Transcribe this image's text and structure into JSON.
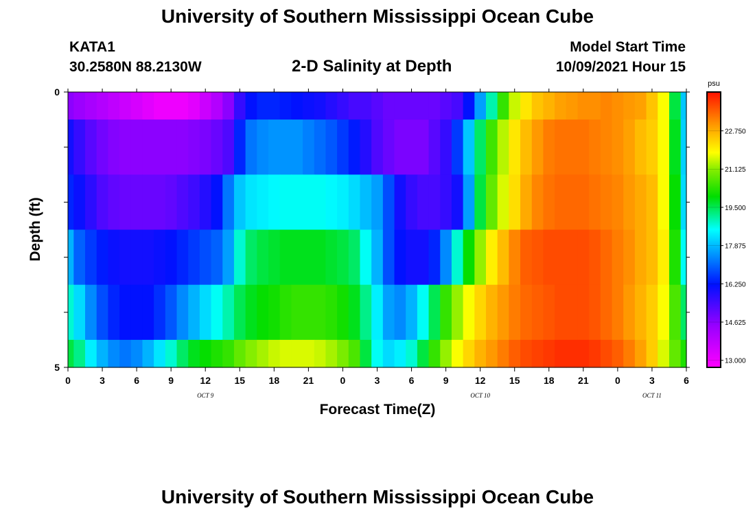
{
  "header": {
    "title": "University of Southern Mississippi Ocean Cube",
    "station": "KATA1",
    "coords": "30.2580N  88.2130W",
    "subtitle": "2-D Salinity at Depth",
    "model_start_label": "Model Start Time",
    "model_start_value": "10/09/2021 Hour 15"
  },
  "footer": {
    "title": "University of Southern Mississippi Ocean Cube"
  },
  "chart_data": {
    "type": "heatmap",
    "xlabel": "Forecast Time(Z)",
    "ylabel": "Depth (ft)",
    "x_tick_labels": [
      "0",
      "3",
      "6",
      "9",
      "12",
      "15",
      "18",
      "21",
      "0",
      "3",
      "6",
      "9",
      "12",
      "15",
      "18",
      "21",
      "0",
      "3",
      "6"
    ],
    "x_range_hours": [
      0,
      54
    ],
    "date_labels": [
      {
        "label": "OCT 9",
        "hour": 12
      },
      {
        "label": "OCT 10",
        "hour": 36
      },
      {
        "label": "OCT 11",
        "hour": 51
      }
    ],
    "y_tick_labels": [
      "0",
      "5"
    ],
    "ylim": [
      0,
      5
    ],
    "y_inverted": true,
    "colorbar": {
      "unit": "psu",
      "min": 12.7,
      "max": 24.4,
      "tick_labels": [
        "22.750",
        "21.125",
        "19.500",
        "17.875",
        "16.250",
        "14.625",
        "13.000"
      ],
      "tick_values": [
        22.75,
        21.125,
        19.5,
        17.875,
        16.25,
        14.625,
        13.0
      ]
    },
    "rows_depth_ft": [
      0.25,
      1.0,
      2.0,
      3.0,
      4.0,
      4.75
    ],
    "row_boundaries_ft": [
      0,
      0.5,
      1.5,
      2.5,
      3.5,
      4.5,
      5.0
    ],
    "x_hours": [
      0,
      1,
      2,
      3,
      4,
      5,
      6,
      7,
      8,
      9,
      10,
      11,
      12,
      13,
      14,
      15,
      16,
      17,
      18,
      19,
      20,
      21,
      22,
      23,
      24,
      25,
      26,
      27,
      28,
      29,
      30,
      31,
      32,
      33,
      34,
      35,
      36,
      37,
      38,
      39,
      40,
      41,
      42,
      43,
      44,
      45,
      46,
      47,
      48,
      49,
      50,
      51,
      52,
      53,
      54
    ],
    "salinity": [
      [
        14.6,
        14.4,
        14.2,
        14.0,
        13.8,
        13.6,
        13.4,
        13.2,
        13.0,
        13.0,
        13.0,
        13.2,
        13.6,
        14.0,
        14.6,
        15.6,
        16.2,
        16.4,
        16.4,
        16.3,
        16.2,
        16.1,
        16.0,
        15.8,
        15.6,
        15.4,
        15.4,
        15.2,
        15.0,
        15.0,
        15.0,
        15.0,
        15.0,
        15.2,
        15.4,
        16.2,
        17.6,
        19.0,
        20.4,
        21.5,
        22.1,
        22.5,
        22.7,
        22.9,
        23.0,
        23.1,
        23.1,
        23.2,
        23.1,
        23.0,
        22.9,
        22.5,
        21.8,
        19.6,
        18.0
      ],
      [
        16.0,
        15.6,
        15.2,
        14.9,
        14.7,
        14.6,
        14.6,
        14.6,
        14.6,
        14.6,
        14.6,
        14.7,
        14.8,
        15.0,
        15.3,
        16.4,
        17.2,
        17.4,
        17.5,
        17.5,
        17.5,
        17.3,
        17.1,
        16.9,
        16.6,
        16.3,
        15.8,
        15.3,
        15.0,
        14.8,
        14.8,
        14.8,
        15.2,
        15.6,
        16.6,
        18.0,
        19.4,
        20.5,
        21.4,
        22.1,
        22.6,
        23.0,
        23.3,
        23.4,
        23.4,
        23.4,
        23.3,
        23.2,
        23.1,
        22.9,
        22.6,
        22.4,
        21.8,
        19.8,
        18.1
      ],
      [
        16.4,
        16.1,
        15.7,
        15.3,
        15.1,
        15.0,
        15.0,
        15.0,
        15.0,
        15.1,
        15.3,
        15.5,
        15.8,
        16.2,
        17.2,
        18.0,
        18.3,
        18.4,
        18.5,
        18.6,
        18.6,
        18.6,
        18.6,
        18.5,
        18.4,
        18.2,
        17.9,
        17.6,
        16.8,
        16.0,
        15.6,
        15.4,
        15.4,
        15.6,
        16.0,
        17.6,
        19.6,
        20.8,
        21.6,
        22.2,
        22.8,
        23.2,
        23.4,
        23.5,
        23.5,
        23.5,
        23.4,
        23.3,
        23.2,
        23.0,
        22.8,
        22.6,
        21.8,
        20.0,
        18.2
      ],
      [
        17.8,
        17.0,
        16.6,
        16.3,
        16.1,
        16.0,
        16.0,
        16.0,
        16.1,
        16.2,
        16.4,
        16.6,
        16.8,
        17.0,
        17.6,
        18.8,
        19.4,
        19.6,
        19.7,
        19.8,
        19.8,
        19.8,
        19.8,
        19.7,
        19.6,
        19.4,
        18.6,
        17.8,
        16.8,
        16.2,
        16.0,
        16.0,
        16.4,
        17.4,
        18.8,
        20.0,
        21.2,
        22.0,
        22.6,
        23.2,
        23.6,
        23.7,
        23.8,
        23.8,
        23.8,
        23.8,
        23.7,
        23.5,
        23.3,
        23.1,
        22.8,
        22.6,
        22.0,
        20.2,
        18.6
      ],
      [
        18.8,
        18.2,
        17.4,
        16.8,
        16.4,
        16.2,
        16.2,
        16.2,
        16.5,
        16.9,
        17.4,
        17.8,
        18.2,
        18.6,
        19.0,
        19.5,
        19.8,
        20.0,
        20.1,
        20.3,
        20.4,
        20.4,
        20.4,
        20.3,
        20.1,
        19.8,
        19.2,
        18.4,
        17.6,
        17.4,
        17.8,
        18.6,
        19.5,
        20.4,
        21.2,
        21.8,
        22.3,
        22.7,
        23.0,
        23.3,
        23.5,
        23.6,
        23.7,
        23.8,
        23.8,
        23.8,
        23.7,
        23.5,
        23.3,
        23.0,
        22.7,
        22.4,
        21.8,
        20.6,
        19.4
      ],
      [
        19.6,
        19.2,
        18.4,
        17.8,
        17.4,
        17.2,
        17.4,
        17.8,
        18.3,
        18.8,
        19.4,
        19.8,
        20.0,
        20.2,
        20.4,
        20.8,
        21.1,
        21.3,
        21.5,
        21.6,
        21.6,
        21.6,
        21.5,
        21.3,
        21.0,
        20.6,
        19.6,
        18.6,
        18.2,
        18.4,
        18.8,
        19.6,
        20.4,
        21.2,
        21.8,
        22.3,
        22.7,
        23.0,
        23.3,
        23.6,
        23.8,
        23.9,
        24.0,
        24.1,
        24.1,
        24.1,
        24.0,
        23.8,
        23.6,
        23.3,
        22.9,
        22.4,
        21.6,
        20.8,
        20.2
      ]
    ]
  }
}
